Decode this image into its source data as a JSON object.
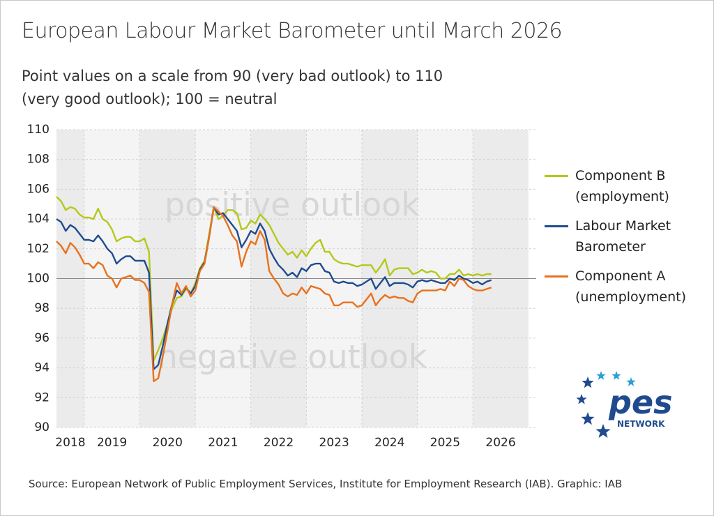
{
  "chart_data": {
    "type": "line",
    "title": "European Labour Market Barometer until March 2026",
    "subtitle": "Point values on a scale from 90 (very bad outlook) to 110 (very good outlook); 100 = neutral",
    "source": "Source: European Network of Public Employment Services, Institute for Employment Research (IAB). Graphic: IAB",
    "annotations": [
      "positive outlook",
      "negative outlook"
    ],
    "reference_line": 100,
    "logo": {
      "text": "pes",
      "subtext": "NETWORK"
    },
    "xlim": [
      2018.5,
      2027.14
    ],
    "xticks": [
      2018,
      2019,
      2020,
      2021,
      2022,
      2023,
      2024,
      2025,
      2026
    ],
    "ylim": [
      90,
      110
    ],
    "yticks": [
      90,
      92,
      94,
      96,
      98,
      100,
      102,
      104,
      106,
      108,
      110
    ],
    "grid": true,
    "x": [
      2018.5,
      2018.583,
      2018.667,
      2018.75,
      2018.833,
      2018.917,
      2019,
      2019.083,
      2019.167,
      2019.25,
      2019.333,
      2019.417,
      2019.5,
      2019.583,
      2019.667,
      2019.75,
      2019.833,
      2019.917,
      2020,
      2020.083,
      2020.167,
      2020.25,
      2020.333,
      2020.417,
      2020.5,
      2020.583,
      2020.667,
      2020.75,
      2020.833,
      2020.917,
      2021,
      2021.083,
      2021.167,
      2021.25,
      2021.333,
      2021.417,
      2021.5,
      2021.583,
      2021.667,
      2021.75,
      2021.833,
      2021.917,
      2022,
      2022.083,
      2022.167,
      2022.25,
      2022.333,
      2022.417,
      2022.5,
      2022.583,
      2022.667,
      2022.75,
      2022.833,
      2022.917,
      2023,
      2023.083,
      2023.167,
      2023.25,
      2023.333,
      2023.417,
      2023.5,
      2023.583,
      2023.667,
      2023.75,
      2023.833,
      2023.917,
      2024,
      2024.083,
      2024.167,
      2024.25,
      2024.333,
      2024.417,
      2024.5,
      2024.583,
      2024.667,
      2024.75,
      2024.833,
      2024.917,
      2025,
      2025.083,
      2025.167,
      2025.25,
      2025.333,
      2025.417,
      2025.5,
      2025.583,
      2025.667,
      2025.75,
      2025.833,
      2025.917,
      2026,
      2026.083,
      2026.167,
      2026.25,
      2026.333
    ],
    "series": [
      {
        "name": "Component B (employment)",
        "color": "#b4c81a",
        "values": [
          105.5,
          105.2,
          104.6,
          104.8,
          104.7,
          104.3,
          104.1,
          104.1,
          104.0,
          104.7,
          104.0,
          103.8,
          103.3,
          102.5,
          102.7,
          102.8,
          102.8,
          102.5,
          102.5,
          102.7,
          101.8,
          94.5,
          95.2,
          96.0,
          97.0,
          98.0,
          98.7,
          98.8,
          99.3,
          99.0,
          99.7,
          100.7,
          101.2,
          103.0,
          104.8,
          104.0,
          104.2,
          104.6,
          104.6,
          104.4,
          103.3,
          103.4,
          103.9,
          103.7,
          104.3,
          104.0,
          103.6,
          103.0,
          102.4,
          102.0,
          101.6,
          101.8,
          101.4,
          101.9,
          101.5,
          102.0,
          102.4,
          102.6,
          101.8,
          101.8,
          101.3,
          101.1,
          101.0,
          101.0,
          100.9,
          100.8,
          100.9,
          100.9,
          100.9,
          100.4,
          100.8,
          101.3,
          100.2,
          100.6,
          100.7,
          100.7,
          100.7,
          100.3,
          100.4,
          100.6,
          100.4,
          100.5,
          100.4,
          100.0,
          100.0,
          100.3,
          100.3,
          100.6,
          100.2,
          100.3,
          100.2,
          100.3,
          100.2,
          100.3,
          100.3
        ]
      },
      {
        "name": "Labour Market Barometer",
        "color": "#1f4b8e",
        "values": [
          104.0,
          103.8,
          103.2,
          103.6,
          103.4,
          103.0,
          102.6,
          102.6,
          102.5,
          102.9,
          102.5,
          102.0,
          101.7,
          101.0,
          101.3,
          101.5,
          101.5,
          101.2,
          101.2,
          101.2,
          100.4,
          93.9,
          94.2,
          95.5,
          97.0,
          98.3,
          99.2,
          98.9,
          99.4,
          99.0,
          99.5,
          100.6,
          101.1,
          102.8,
          104.8,
          104.3,
          104.4,
          104.0,
          103.6,
          103.2,
          102.1,
          102.6,
          103.2,
          103.0,
          103.7,
          103.2,
          102.0,
          101.4,
          100.9,
          100.6,
          100.2,
          100.4,
          100.1,
          100.7,
          100.5,
          100.9,
          101.0,
          101.0,
          100.5,
          100.4,
          99.8,
          99.7,
          99.8,
          99.7,
          99.7,
          99.5,
          99.6,
          99.8,
          100.0,
          99.3,
          99.7,
          100.1,
          99.5,
          99.7,
          99.7,
          99.7,
          99.6,
          99.4,
          99.8,
          99.9,
          99.8,
          99.9,
          99.8,
          99.7,
          99.7,
          100.0,
          99.9,
          100.2,
          100.0,
          99.9,
          99.7,
          99.8,
          99.6,
          99.8,
          99.9
        ]
      },
      {
        "name": "Component A (unemployment)",
        "color": "#e8711c",
        "values": [
          102.5,
          102.2,
          101.7,
          102.4,
          102.1,
          101.6,
          101.0,
          101.0,
          100.7,
          101.1,
          100.9,
          100.2,
          100.0,
          99.4,
          100.0,
          100.1,
          100.2,
          99.9,
          99.9,
          99.7,
          99.1,
          93.1,
          93.3,
          94.8,
          96.5,
          98.3,
          99.7,
          99.0,
          99.5,
          98.8,
          99.2,
          100.5,
          101.0,
          102.8,
          104.8,
          104.5,
          104.2,
          103.6,
          102.9,
          102.5,
          100.8,
          101.8,
          102.5,
          102.3,
          103.2,
          102.6,
          100.5,
          100.0,
          99.6,
          99.0,
          98.8,
          99.0,
          98.9,
          99.4,
          99.0,
          99.5,
          99.4,
          99.3,
          99.0,
          98.9,
          98.2,
          98.2,
          98.4,
          98.4,
          98.4,
          98.1,
          98.2,
          98.6,
          99.0,
          98.2,
          98.6,
          98.9,
          98.7,
          98.8,
          98.7,
          98.7,
          98.5,
          98.4,
          99.0,
          99.2,
          99.2,
          99.2,
          99.2,
          99.3,
          99.2,
          99.8,
          99.5,
          100.0,
          99.9,
          99.5,
          99.3,
          99.2,
          99.2,
          99.3,
          99.4
        ]
      }
    ]
  }
}
